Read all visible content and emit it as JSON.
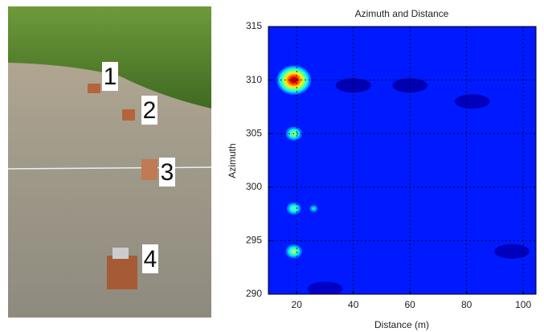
{
  "photo": {
    "labels": [
      "1",
      "2",
      "3",
      "4"
    ]
  },
  "chart_data": {
    "type": "heatmap",
    "title": "Azimuth and Distance",
    "x_label": "Distance (m)",
    "y_label": "Azimuth",
    "xlim": [
      10,
      104.5
    ],
    "ylim": [
      290,
      315
    ],
    "xticks": [
      20,
      40,
      60,
      80,
      100
    ],
    "yticks": [
      290,
      295,
      300,
      305,
      310,
      315
    ],
    "grid": true,
    "background_value": 0.15,
    "x": [
      19,
      19,
      19,
      26,
      19,
      26,
      40,
      60,
      82,
      96,
      30
    ],
    "y": [
      310,
      305,
      298,
      298,
      294,
      305,
      309.5,
      309.5,
      308,
      294,
      290.5
    ],
    "values": [
      1.0,
      0.55,
      0.5,
      0.35,
      0.55,
      0.22,
      0.05,
      0.05,
      0.06,
      0.06,
      0.07
    ]
  }
}
